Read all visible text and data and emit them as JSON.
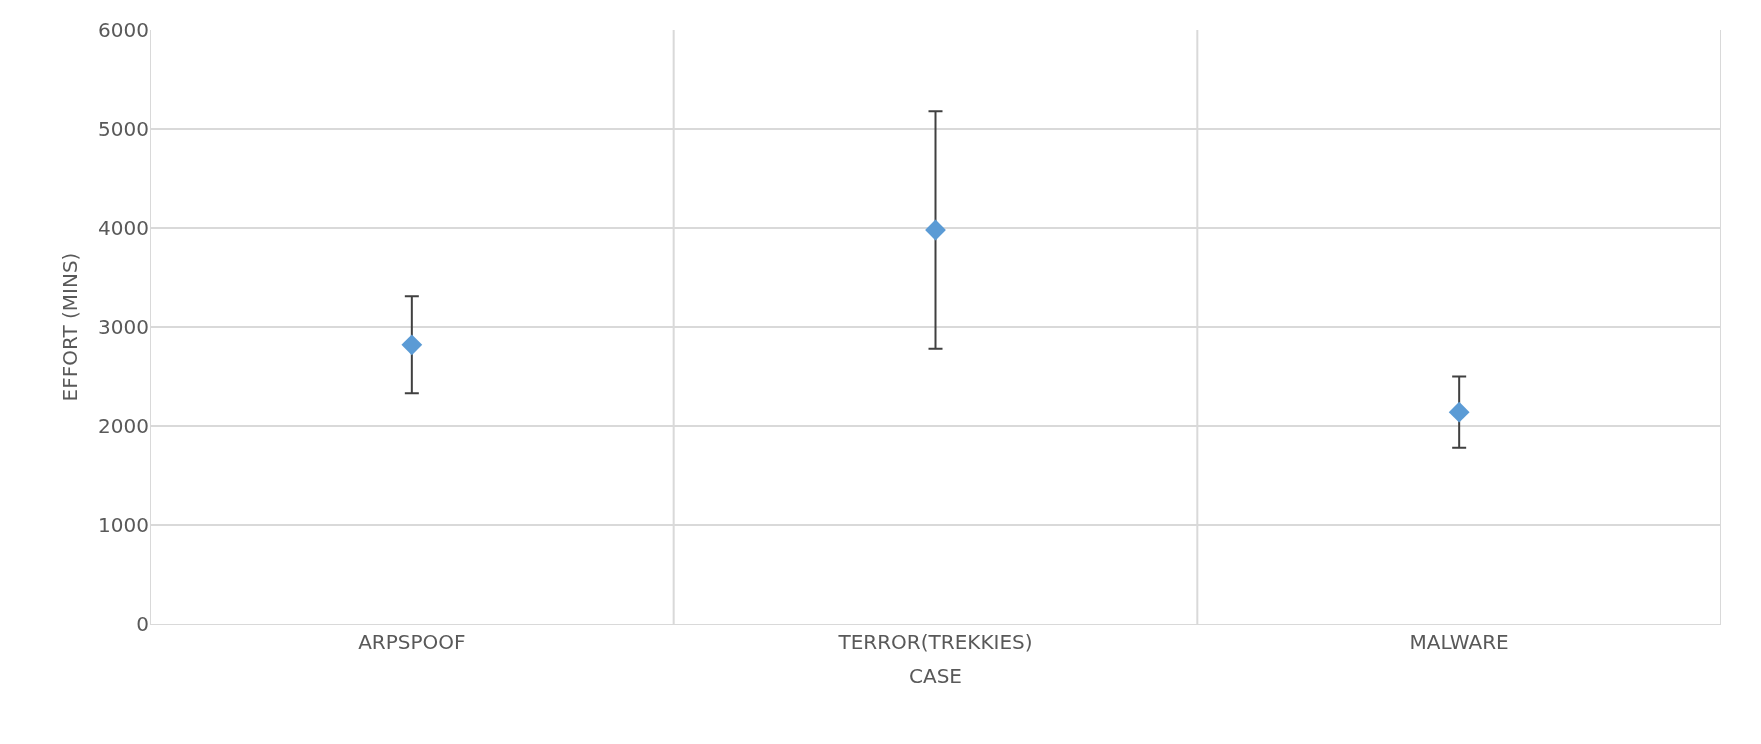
{
  "chart_data": {
    "type": "scatter",
    "xlabel": "CASE",
    "ylabel": "EFFORT (MINS)",
    "categories": [
      "ARPSPOOF",
      "TERROR(TREKKIES)",
      "MALWARE"
    ],
    "values": [
      2820,
      3980,
      2140
    ],
    "errors": [
      490,
      1200,
      360
    ],
    "color": "#5b9bd5",
    "marker": "diamond",
    "ylim": [
      0,
      6000
    ],
    "yticks": [
      0,
      1000,
      2000,
      3000,
      4000,
      5000,
      6000
    ],
    "grid": true,
    "legend": false
  }
}
